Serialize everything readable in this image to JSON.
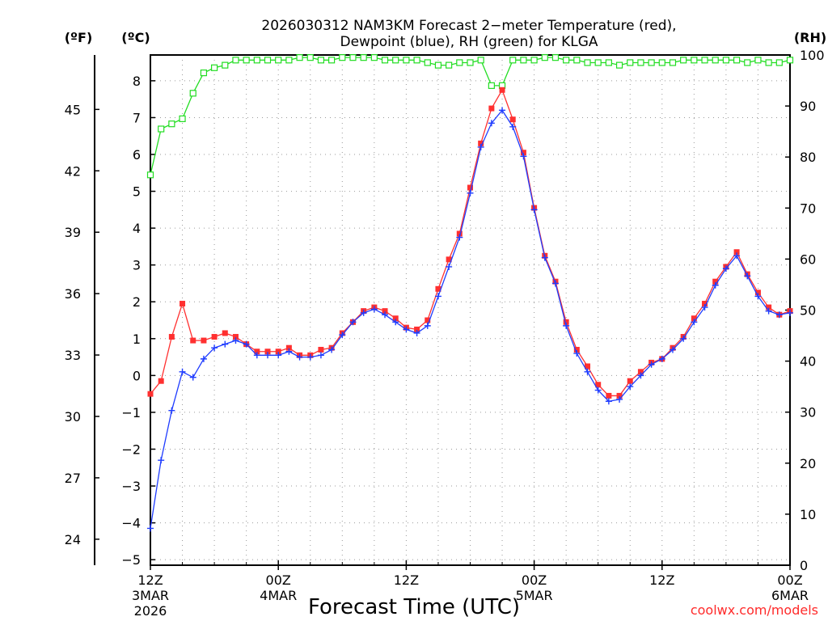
{
  "chart_data": {
    "type": "line",
    "title_line1": "2026030312 NAM3KM Forecast 2−meter Temperature (red),",
    "title_line2": "Dewpoint (blue), RH (green) for KLGA",
    "xlabel": "Forecast Time (UTC)",
    "credit": "coolwx.com/models",
    "units": {
      "fahrenheit": "(ºF)",
      "celsius": "(ºC)",
      "rh": "(RH)"
    },
    "x_unit": "forecast hour",
    "x_range": [
      0,
      60
    ],
    "x_ticks": [
      {
        "hour": 0,
        "line1": "12Z",
        "line2": "3MAR",
        "line3": "2026"
      },
      {
        "hour": 12,
        "line1": "00Z",
        "line2": "4MAR",
        "line3": ""
      },
      {
        "hour": 24,
        "line1": "12Z",
        "line2": "",
        "line3": ""
      },
      {
        "hour": 36,
        "line1": "00Z",
        "line2": "5MAR",
        "line3": ""
      },
      {
        "hour": 48,
        "line1": "12Z",
        "line2": "",
        "line3": ""
      },
      {
        "hour": 60,
        "line1": "00Z",
        "line2": "6MAR",
        "line3": ""
      }
    ],
    "celsius_range": [
      -5.15,
      8.7
    ],
    "celsius_ticks": [
      "8",
      "7",
      "6",
      "5",
      "4",
      "3",
      "2",
      "1",
      "0",
      "−1",
      "−2",
      "−3",
      "−4",
      "−5"
    ],
    "celsius_tick_values": [
      8,
      7,
      6,
      5,
      4,
      3,
      2,
      1,
      0,
      -1,
      -2,
      -3,
      -4,
      -5
    ],
    "fahrenheit_ticks": [
      "45",
      "42",
      "39",
      "36",
      "33",
      "30",
      "27",
      "24"
    ],
    "fahrenheit_tick_values": [
      45,
      42,
      39,
      36,
      33,
      30,
      27,
      24
    ],
    "rh_range": [
      0,
      100
    ],
    "rh_ticks": [
      "100",
      "90",
      "80",
      "70",
      "60",
      "50",
      "40",
      "30",
      "20",
      "10",
      "0"
    ],
    "rh_tick_values": [
      100,
      90,
      80,
      70,
      60,
      50,
      40,
      30,
      20,
      10,
      0
    ],
    "grid": true,
    "series": [
      {
        "name": "Temperature",
        "unit": "°C",
        "color": "#ff3030",
        "marker": "filled-square",
        "values": [
          -0.5,
          -0.15,
          1.05,
          1.95,
          0.95,
          0.95,
          1.05,
          1.15,
          1.05,
          0.85,
          0.65,
          0.65,
          0.65,
          0.75,
          0.55,
          0.55,
          0.7,
          0.75,
          1.15,
          1.45,
          1.75,
          1.85,
          1.75,
          1.55,
          1.3,
          1.25,
          1.5,
          2.35,
          3.15,
          3.85,
          5.1,
          6.3,
          7.25,
          7.75,
          6.95,
          6.05,
          4.55,
          3.25,
          2.55,
          1.45,
          0.7,
          0.25,
          -0.25,
          -0.55,
          -0.55,
          -0.15,
          0.1,
          0.35,
          0.45,
          0.75,
          1.05,
          1.55,
          1.95,
          2.55,
          2.95,
          3.35,
          2.75,
          2.25,
          1.85,
          1.65,
          1.75
        ]
      },
      {
        "name": "Dewpoint",
        "unit": "°C",
        "color": "#1f3cff",
        "marker": "plus",
        "values": [
          -4.15,
          -2.3,
          -0.95,
          0.1,
          -0.05,
          0.45,
          0.75,
          0.85,
          0.95,
          0.85,
          0.55,
          0.55,
          0.55,
          0.65,
          0.5,
          0.5,
          0.55,
          0.7,
          1.1,
          1.45,
          1.7,
          1.8,
          1.65,
          1.45,
          1.25,
          1.15,
          1.35,
          2.15,
          2.95,
          3.75,
          4.95,
          6.2,
          6.85,
          7.2,
          6.75,
          5.95,
          4.5,
          3.2,
          2.5,
          1.35,
          0.6,
          0.1,
          -0.4,
          -0.7,
          -0.65,
          -0.3,
          0.0,
          0.3,
          0.45,
          0.7,
          1.0,
          1.45,
          1.85,
          2.45,
          2.9,
          3.25,
          2.7,
          2.15,
          1.75,
          1.65,
          1.7
        ]
      },
      {
        "name": "RH",
        "unit": "%",
        "color": "#22dd22",
        "marker": "open-square",
        "values": [
          76.5,
          85.5,
          86.5,
          87.5,
          92.5,
          96.5,
          97.5,
          98,
          99,
          99,
          99,
          99,
          99,
          99,
          99.5,
          99.5,
          99,
          99,
          99.5,
          99.5,
          99.5,
          99.5,
          99,
          99,
          99,
          99,
          98.5,
          98,
          98,
          98.5,
          98.5,
          99,
          94,
          94,
          99,
          99,
          99,
          99.5,
          99.5,
          99,
          99,
          98.5,
          98.5,
          98.5,
          98,
          98.5,
          98.5,
          98.5,
          98.5,
          98.5,
          99,
          99,
          99,
          99,
          99,
          99,
          98.5,
          99,
          98.5,
          98.5,
          99
        ]
      }
    ]
  }
}
